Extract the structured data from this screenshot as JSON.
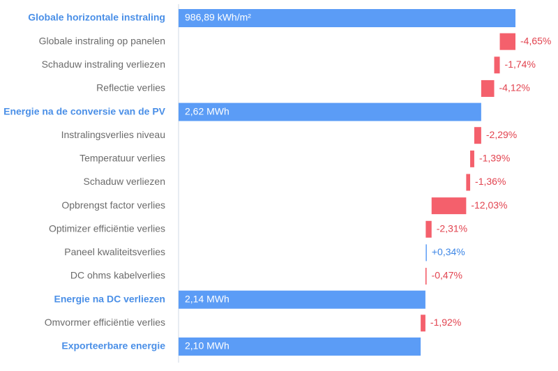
{
  "chart_data": {
    "type": "waterfall",
    "categories": [
      "Globale horizontale instraling",
      "Globale instraling op panelen",
      "Schaduw instraling verliezen",
      "Reflectie verlies",
      "Energie na de conversie van de PV",
      "Instralingsverlies niveau",
      "Temperatuur verlies",
      "Schaduw verliezen",
      "Opbrengst factor verlies",
      "Optimizer efficiëntie verlies",
      "Paneel kwaliteitsverlies",
      "DC ohms kabelverlies",
      "Energie na DC verliezen",
      "Omvormer efficiëntie verlies",
      "Exporteerbare energie"
    ],
    "values": [
      986.89,
      -4.65,
      -1.74,
      -4.12,
      2.62,
      -2.29,
      -1.39,
      -1.36,
      -12.03,
      -2.31,
      0.34,
      -0.47,
      2.14,
      -1.92,
      2.1
    ],
    "value_labels": [
      "986,89 kWh/m²",
      "-4,65%",
      "-1,74%",
      "-4,12%",
      "2,62 MWh",
      "-2,29%",
      "-1,39%",
      "-1,36%",
      "-12,03%",
      "-2,31%",
      "+0,34%",
      "-0,47%",
      "2,14 MWh",
      "-1,92%",
      "2,10 MWh"
    ],
    "totals": [
      true,
      false,
      false,
      false,
      true,
      false,
      false,
      false,
      false,
      false,
      false,
      false,
      true,
      false,
      true
    ],
    "total_color": "#5b9cf6",
    "loss_color": "#f4606c",
    "gain_color": "#5b9cf6",
    "total_label_color": "#4a8fe7",
    "loss_label_color": "#e2434f",
    "gain_label_color": "#3d86e6"
  }
}
